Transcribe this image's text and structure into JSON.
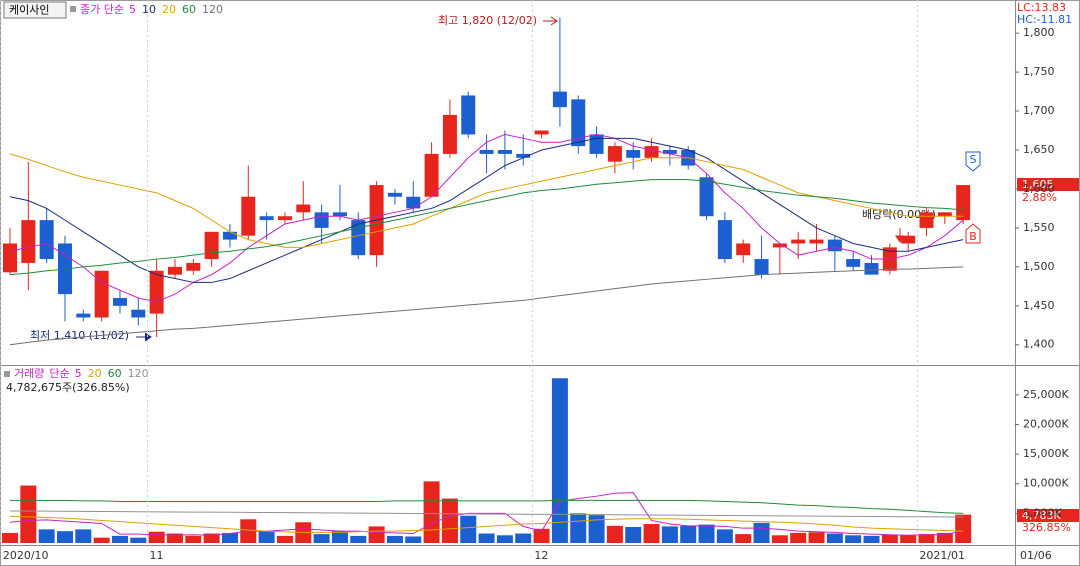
{
  "chart_data": [
    {
      "type": "candlestick",
      "title": "케이사인",
      "legend_title": "종가 단순",
      "lc_label": "LC:13.83",
      "hc_label": "HC:-11.81",
      "last_label": "1,605",
      "change_label": "2.88%",
      "high_annotation": "최고 1,820 (12/02)",
      "low_annotation": "최저 1,410 (11/02)",
      "event_annotation": "배당락(0.00%)",
      "sell_marker": "S",
      "buy_marker": "B",
      "up_color": "#e8251c",
      "down_color": "#1c5fd1",
      "ylim": [
        1374,
        1840
      ],
      "yticks": [
        {
          "value": 1400,
          "label": "1,400"
        },
        {
          "value": 1450,
          "label": "1,450"
        },
        {
          "value": 1500,
          "label": "1,500"
        },
        {
          "value": 1550,
          "label": "1,550"
        },
        {
          "value": 1600,
          "label": "1,600"
        },
        {
          "value": 1650,
          "label": "1,650"
        },
        {
          "value": 1700,
          "label": "1,700"
        },
        {
          "value": 1750,
          "label": "1,750"
        },
        {
          "value": 1800,
          "label": "1,800"
        }
      ],
      "open": [
        1493,
        1505,
        1560,
        1530,
        1440,
        1435,
        1460,
        1445,
        1440,
        1490,
        1495,
        1510,
        1545,
        1540,
        1565,
        1560,
        1570,
        1570,
        1570,
        1560,
        1515,
        1595,
        1590,
        1590,
        1645,
        1720,
        1650,
        1650,
        1645,
        1670,
        1725,
        1715,
        1670,
        1635,
        1650,
        1640,
        1650,
        1650,
        1615,
        1560,
        1515,
        1510,
        1525,
        1530,
        1530,
        1535,
        1510,
        1505,
        1495,
        1530,
        1550,
        1565,
        1560
      ],
      "high": [
        1550,
        1635,
        1575,
        1540,
        1445,
        1495,
        1470,
        1460,
        1510,
        1510,
        1510,
        1545,
        1555,
        1630,
        1570,
        1570,
        1610,
        1580,
        1605,
        1570,
        1610,
        1600,
        1610,
        1660,
        1715,
        1725,
        1670,
        1675,
        1670,
        1675,
        1820,
        1720,
        1680,
        1660,
        1660,
        1665,
        1655,
        1655,
        1620,
        1570,
        1535,
        1540,
        1530,
        1545,
        1555,
        1540,
        1520,
        1515,
        1530,
        1545,
        1575,
        1570,
        1605
      ],
      "low": [
        1490,
        1470,
        1505,
        1430,
        1430,
        1430,
        1440,
        1425,
        1410,
        1485,
        1490,
        1500,
        1525,
        1535,
        1535,
        1555,
        1560,
        1530,
        1560,
        1510,
        1500,
        1580,
        1570,
        1590,
        1640,
        1665,
        1620,
        1625,
        1630,
        1665,
        1680,
        1645,
        1640,
        1620,
        1625,
        1635,
        1630,
        1625,
        1560,
        1505,
        1505,
        1485,
        1490,
        1510,
        1520,
        1495,
        1495,
        1490,
        1490,
        1520,
        1540,
        1555,
        1555
      ],
      "close": [
        1530,
        1560,
        1510,
        1465,
        1435,
        1495,
        1450,
        1435,
        1495,
        1500,
        1505,
        1545,
        1535,
        1590,
        1560,
        1565,
        1580,
        1550,
        1565,
        1515,
        1605,
        1590,
        1575,
        1645,
        1695,
        1670,
        1645,
        1645,
        1640,
        1675,
        1705,
        1655,
        1645,
        1655,
        1640,
        1655,
        1645,
        1630,
        1565,
        1510,
        1530,
        1490,
        1530,
        1535,
        1535,
        1520,
        1500,
        1490,
        1525,
        1540,
        1570,
        1570,
        1605
      ],
      "series": [
        {
          "name": "5",
          "color": "#c81fc8",
          "values": [
            1520,
            1525,
            1530,
            1515,
            1500,
            1480,
            1470,
            1460,
            1455,
            1465,
            1480,
            1490,
            1505,
            1525,
            1540,
            1555,
            1560,
            1565,
            1565,
            1560,
            1565,
            1570,
            1575,
            1590,
            1615,
            1640,
            1660,
            1670,
            1665,
            1660,
            1660,
            1665,
            1670,
            1665,
            1655,
            1650,
            1645,
            1640,
            1620,
            1595,
            1575,
            1550,
            1530,
            1515,
            1520,
            1525,
            1520,
            1510,
            1510,
            1515,
            1525,
            1540,
            1560
          ]
        },
        {
          "name": "10",
          "color": "#1a2a80",
          "values": [
            1590,
            1585,
            1575,
            1560,
            1545,
            1530,
            1515,
            1500,
            1490,
            1485,
            1480,
            1480,
            1485,
            1495,
            1505,
            1515,
            1525,
            1535,
            1545,
            1555,
            1560,
            1565,
            1570,
            1575,
            1585,
            1600,
            1615,
            1630,
            1640,
            1650,
            1655,
            1660,
            1665,
            1665,
            1665,
            1660,
            1655,
            1650,
            1640,
            1625,
            1610,
            1595,
            1580,
            1565,
            1550,
            1540,
            1530,
            1525,
            1520,
            1520,
            1525,
            1530,
            1535
          ]
        },
        {
          "name": "20",
          "color": "#e0a000",
          "values": [
            1645,
            1638,
            1630,
            1622,
            1615,
            1610,
            1605,
            1600,
            1595,
            1585,
            1575,
            1560,
            1545,
            1535,
            1530,
            1525,
            1525,
            1530,
            1535,
            1540,
            1545,
            1550,
            1555,
            1565,
            1575,
            1585,
            1595,
            1600,
            1605,
            1610,
            1615,
            1620,
            1625,
            1630,
            1635,
            1640,
            1640,
            1640,
            1635,
            1630,
            1625,
            1615,
            1605,
            1595,
            1590,
            1585,
            1580,
            1575,
            1570,
            1565,
            1565,
            1565,
            1565
          ]
        },
        {
          "name": "60",
          "color": "#1f8a3a",
          "values": [
            1490,
            1492,
            1495,
            1497,
            1500,
            1502,
            1505,
            1507,
            1510,
            1512,
            1515,
            1518,
            1520,
            1523,
            1526,
            1530,
            1535,
            1540,
            1545,
            1550,
            1555,
            1560,
            1565,
            1570,
            1575,
            1580,
            1585,
            1590,
            1595,
            1598,
            1600,
            1603,
            1606,
            1608,
            1610,
            1612,
            1612,
            1612,
            1610,
            1606,
            1602,
            1598,
            1595,
            1592,
            1590,
            1588,
            1585,
            1582,
            1580,
            1578,
            1576,
            1575,
            1573
          ]
        },
        {
          "name": "120",
          "color": "#707070",
          "values": [
            1400,
            1403,
            1406,
            1408,
            1410,
            1412,
            1414,
            1416,
            1418,
            1420,
            1421,
            1423,
            1425,
            1427,
            1429,
            1431,
            1433,
            1435,
            1437,
            1439,
            1441,
            1443,
            1445,
            1447,
            1449,
            1451,
            1453,
            1455,
            1457,
            1460,
            1463,
            1466,
            1469,
            1472,
            1475,
            1478,
            1480,
            1482,
            1484,
            1486,
            1488,
            1490,
            1491,
            1492,
            1493,
            1494,
            1495,
            1496,
            1497,
            1497,
            1498,
            1499,
            1500
          ]
        }
      ]
    },
    {
      "type": "bar",
      "title": "거래량",
      "legend_title": "단순",
      "summary_label": "4,782,675주(326.85%)",
      "last_label": "4,783K",
      "ratio_label": "326.85%",
      "categories": [
        "2020/10",
        null,
        null,
        null,
        null,
        null,
        null,
        null,
        "11",
        null,
        null,
        null,
        null,
        null,
        null,
        null,
        null,
        null,
        null,
        null,
        null,
        null,
        null,
        null,
        null,
        null,
        null,
        null,
        null,
        "12",
        null,
        null,
        null,
        null,
        null,
        null,
        null,
        null,
        null,
        null,
        null,
        null,
        null,
        null,
        null,
        null,
        null,
        null,
        null,
        null,
        "2021/01",
        null,
        null
      ],
      "x_end_label": "01/06",
      "ylim": [
        0,
        29700
      ],
      "yticks": [
        {
          "value": 5000,
          "label": "5,000K"
        },
        {
          "value": 10000,
          "label": "10,000K"
        },
        {
          "value": 15000,
          "label": "15,000K"
        },
        {
          "value": 20000,
          "label": "20,000K"
        },
        {
          "value": 25000,
          "label": "25,000K"
        }
      ],
      "values": [
        1700,
        9700,
        2300,
        2000,
        2300,
        900,
        1200,
        900,
        1900,
        1600,
        1200,
        1600,
        1700,
        4000,
        2000,
        1200,
        3500,
        1500,
        2000,
        1200,
        2800,
        1200,
        1100,
        10400,
        7500,
        4600,
        1600,
        1300,
        1600,
        2400,
        27800,
        5000,
        4700,
        2900,
        2700,
        3200,
        2800,
        2900,
        3100,
        2300,
        1500,
        3400,
        1300,
        1700,
        1800,
        1600,
        1300,
        1200,
        1400,
        1300,
        1500,
        1700,
        4782.675
      ],
      "series": [
        {
          "name": "5",
          "color": "#c81fc8",
          "values": [
            3500,
            3800,
            3900,
            3700,
            3500,
            3300,
            1500,
            1500,
            1400,
            1300,
            1400,
            1300,
            1600,
            2000,
            2000,
            2200,
            2400,
            2200,
            2000,
            2000,
            1800,
            1700,
            1600,
            3300,
            4500,
            5000,
            5000,
            5000,
            2800,
            2000,
            7000,
            7500,
            7900,
            8400,
            8500,
            3800,
            3200,
            2900,
            2900,
            2800,
            2500,
            2500,
            2300,
            2000,
            1900,
            1800,
            1600,
            1500,
            1400,
            1300,
            1400,
            1400,
            2100
          ]
        },
        {
          "name": "20",
          "color": "#e0a000",
          "values": [
            4500,
            4400,
            4300,
            4200,
            4000,
            3800,
            3600,
            3400,
            3200,
            3000,
            2800,
            2600,
            2400,
            2200,
            2000,
            1900,
            1800,
            1800,
            1800,
            1900,
            2000,
            2000,
            2100,
            2200,
            2400,
            2600,
            2800,
            3000,
            3200,
            3300,
            3500,
            3700,
            3900,
            4000,
            4100,
            4100,
            4100,
            4000,
            3900,
            3800,
            3700,
            3600,
            3500,
            3400,
            3200,
            3000,
            2700,
            2500,
            2400,
            2300,
            2200,
            2100,
            2000
          ]
        },
        {
          "name": "60",
          "color": "#1f8a3a",
          "values": [
            7200,
            7200,
            7200,
            7200,
            7100,
            7100,
            7000,
            7000,
            7000,
            7000,
            7000,
            7000,
            7000,
            7000,
            7000,
            7000,
            7000,
            7000,
            7000,
            7000,
            7000,
            7100,
            7100,
            7100,
            7100,
            7100,
            7100,
            7100,
            7100,
            7100,
            7200,
            7200,
            7200,
            7200,
            7200,
            7200,
            7200,
            7200,
            7100,
            7000,
            6900,
            6800,
            6600,
            6400,
            6300,
            6100,
            6000,
            5800,
            5700,
            5500,
            5300,
            5100,
            5000
          ]
        },
        {
          "name": "120",
          "color": "#909090",
          "values": [
            5400,
            5400,
            5380,
            5360,
            5340,
            5320,
            5300,
            5280,
            5260,
            5240,
            5220,
            5200,
            5180,
            5160,
            5140,
            5120,
            5100,
            5080,
            5060,
            5040,
            5020,
            5000,
            4980,
            4960,
            4940,
            4920,
            4900,
            4880,
            4860,
            4840,
            4820,
            4800,
            4780,
            4760,
            4740,
            4720,
            4700,
            4680,
            4660,
            4640,
            4620,
            4600,
            4580,
            4560,
            4540,
            4520,
            4500,
            4480,
            4460,
            4440,
            4420,
            4400,
            4380
          ]
        }
      ]
    }
  ]
}
